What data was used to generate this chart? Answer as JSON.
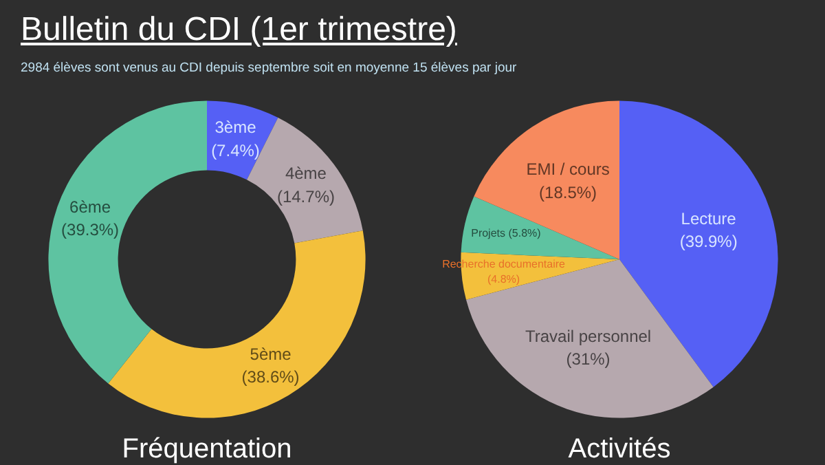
{
  "chart_data": [
    {
      "type": "donut",
      "title": "Bulletin du CDI (1er trimestre)",
      "subtitle": "2984 élèves sont venus au CDI depuis septembre soit en moyenne 15 élèves par jour",
      "xlabel": "Fréquentation",
      "categories": [
        "3ème",
        "4ème",
        "5ème",
        "6ème"
      ],
      "values": [
        7.4,
        14.7,
        38.6,
        39.3
      ],
      "colors": [
        "#5560f5",
        "#b6a8ae",
        "#f3c03c",
        "#5ec3a1"
      ],
      "value_labels": [
        "(7.4%)",
        "(14.7%)",
        "(38.6%)",
        "(39.3%)"
      ]
    },
    {
      "type": "pie",
      "xlabel": "Activités",
      "categories": [
        "Lecture",
        "Travail personnel",
        "Recherche documentaire",
        "Projets",
        "EMI / cours"
      ],
      "values": [
        39.9,
        31,
        4.8,
        5.8,
        18.5
      ],
      "colors": [
        "#5560f5",
        "#b6a8ae",
        "#f3c03c",
        "#5ec3a1",
        "#f78a5e"
      ],
      "value_labels": [
        "(39.9%)",
        "(31%)",
        "(4.8%)",
        "(5.8%)",
        "(18.5%)"
      ]
    }
  ]
}
